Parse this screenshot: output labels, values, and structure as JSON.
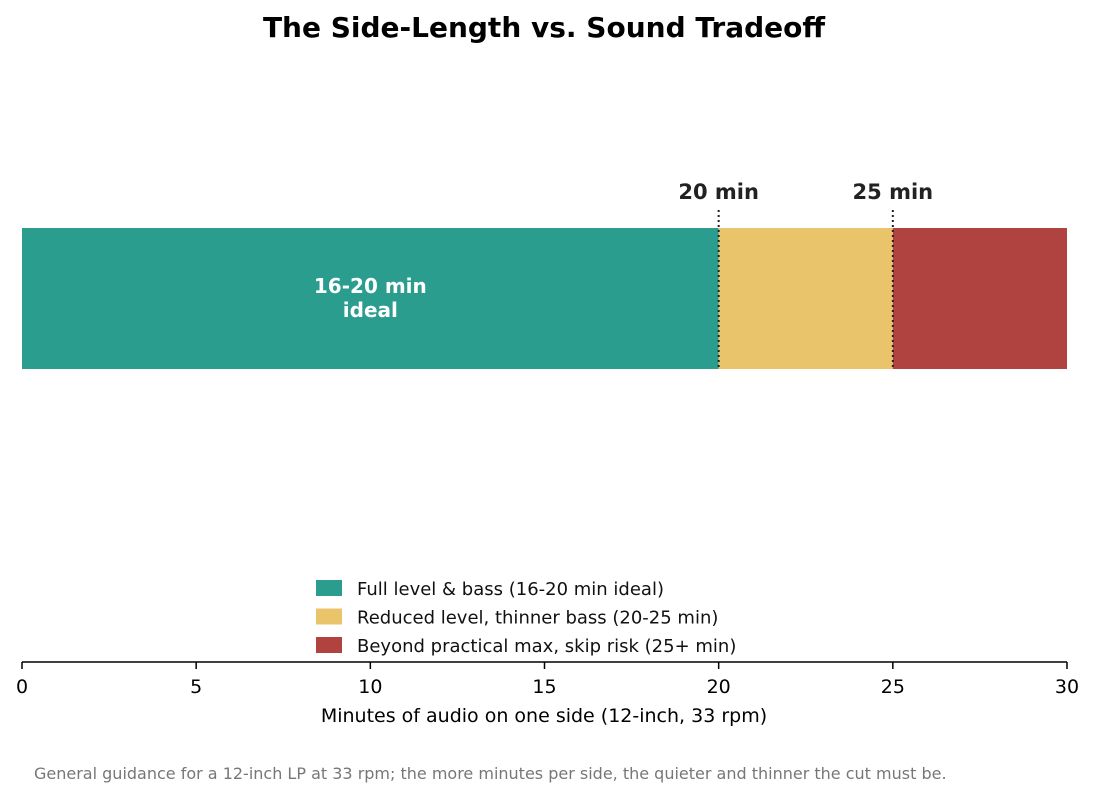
{
  "chart_data": {
    "type": "bar",
    "orientation": "horizontal-stacked",
    "title": "The Side-Length vs. Sound Tradeoff",
    "xlabel": "Minutes of audio on one side (12-inch, 33 rpm)",
    "xlim": [
      0,
      30
    ],
    "xticks": [
      0,
      5,
      10,
      15,
      20,
      25,
      30
    ],
    "segments": [
      {
        "name": "Full level & bass (16-20 min ideal)",
        "start": 0,
        "end": 20,
        "color": "#2a9d8f"
      },
      {
        "name": "Reduced level, thinner bass (20-25 min)",
        "start": 20,
        "end": 25,
        "color": "#e9c46a"
      },
      {
        "name": "Beyond practical max, skip risk (25+ min)",
        "start": 25,
        "end": 30,
        "color": "#b04240"
      }
    ],
    "markers": [
      {
        "value": 20,
        "label": "20 min"
      },
      {
        "value": 25,
        "label": "25 min"
      }
    ],
    "bar_annotation": {
      "x": 10,
      "lines": [
        "16-20 min",
        "ideal"
      ]
    },
    "grid": false,
    "legend_position": "bottom-center"
  },
  "footnote": "General guidance for a 12-inch LP at 33 rpm; the more minutes per side, the quieter and thinner the cut must be."
}
